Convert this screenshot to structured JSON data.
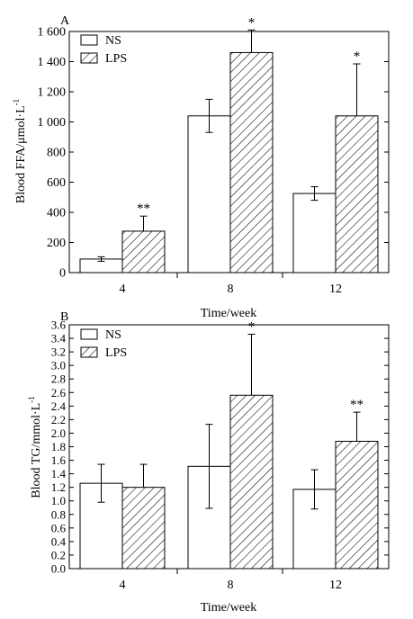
{
  "chart_data": [
    {
      "panel_label": "A",
      "type": "bar",
      "categories": [
        "4",
        "8",
        "12"
      ],
      "xlabel": "Time/week",
      "ylabel_main": "Blood FFA/μmol·L",
      "ylabel_sup": "-1",
      "ylim": [
        0,
        1600
      ],
      "yticks": [
        0,
        200,
        400,
        600,
        800,
        1000,
        1200,
        1400,
        1600
      ],
      "ytick_labels": [
        "0",
        "200",
        "400",
        "600",
        "800",
        "1 000",
        "1 200",
        "1 400",
        "1 600"
      ],
      "legend_position": "top-left",
      "series": [
        {
          "name": "NS",
          "fill": "white",
          "values": [
            90,
            1040,
            525
          ],
          "errors": [
            15,
            110,
            45
          ],
          "marks": [
            "",
            "",
            ""
          ]
        },
        {
          "name": "LPS",
          "fill": "hatched",
          "values": [
            275,
            1460,
            1040
          ],
          "errors": [
            100,
            150,
            345
          ],
          "marks": [
            "**",
            "*",
            "*"
          ]
        }
      ]
    },
    {
      "panel_label": "B",
      "type": "bar",
      "categories": [
        "4",
        "8",
        "12"
      ],
      "xlabel": "Time/week",
      "ylabel_main": "Blood TG/mmol·L",
      "ylabel_sup": "-1",
      "ylim": [
        0,
        3.6
      ],
      "yticks": [
        0,
        0.2,
        0.4,
        0.6,
        0.8,
        1.0,
        1.2,
        1.4,
        1.6,
        1.8,
        2.0,
        2.2,
        2.4,
        2.6,
        2.8,
        3.0,
        3.2,
        3.4,
        3.6
      ],
      "ytick_labels": [
        "0.0",
        "0.2",
        "0.4",
        "0.6",
        "0.8",
        "1.0",
        "1.2",
        "1.4",
        "1.6",
        "1.8",
        "2.0",
        "2.2",
        "2.4",
        "2.6",
        "2.8",
        "3.0",
        "3.2",
        "3.4",
        "3.6"
      ],
      "legend_position": "top-left",
      "series": [
        {
          "name": "NS",
          "fill": "white",
          "values": [
            1.26,
            1.51,
            1.17
          ],
          "errors": [
            0.28,
            0.62,
            0.29
          ],
          "marks": [
            "",
            "",
            ""
          ]
        },
        {
          "name": "LPS",
          "fill": "hatched",
          "values": [
            1.2,
            2.56,
            1.88
          ],
          "errors": [
            0.34,
            0.9,
            0.43
          ],
          "marks": [
            "",
            "*",
            "**"
          ]
        }
      ]
    }
  ]
}
